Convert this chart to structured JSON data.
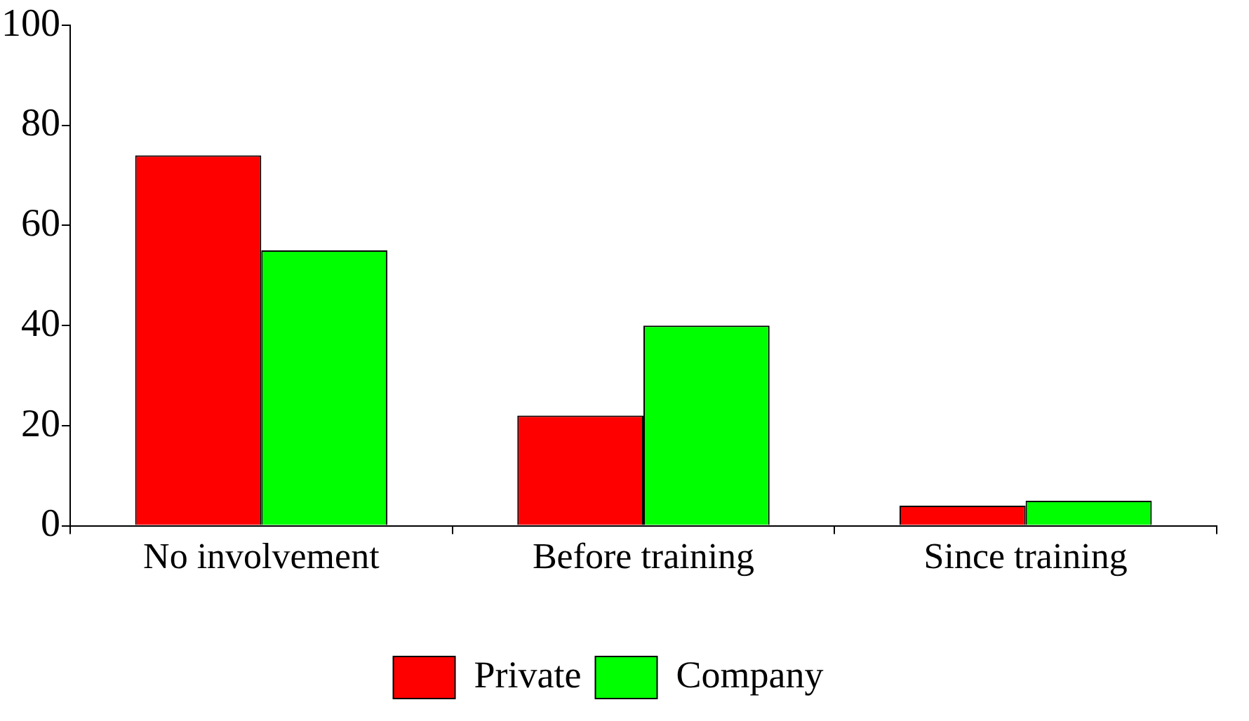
{
  "chart_data": {
    "type": "bar",
    "categories": [
      "No involvement",
      "Before training",
      "Since training"
    ],
    "series": [
      {
        "name": "Private",
        "color": "#ff0000",
        "values": [
          74,
          22,
          4
        ]
      },
      {
        "name": "Company",
        "color": "#00ff00",
        "values": [
          55,
          40,
          5
        ]
      }
    ],
    "ylim": [
      0,
      100
    ],
    "yticks": [
      0,
      20,
      40,
      60,
      80,
      100
    ],
    "grid": false,
    "legend": "bottom"
  }
}
